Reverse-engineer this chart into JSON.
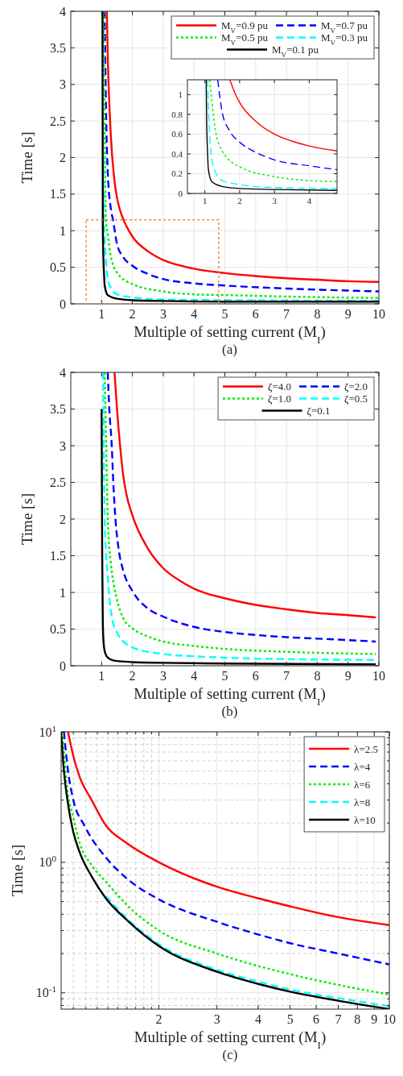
{
  "chart_data": [
    {
      "type": "line",
      "xlabel": "Multiple of setting current (M$_{I}$)",
      "ylabel": "Time [s]",
      "annotations": [
        "(a)"
      ],
      "xlim": [
        0,
        10
      ],
      "ylim": [
        0,
        4
      ],
      "xticks": [
        1,
        2,
        3,
        4,
        5,
        6,
        7,
        8,
        9,
        10
      ],
      "yticks": [
        0,
        0.5,
        1,
        1.5,
        2,
        2.5,
        3,
        3.5,
        4
      ],
      "grid": true,
      "legend": "top right",
      "series": [
        {
          "name": "M$_{V}$=0.9 pu",
          "color": "#ff0000",
          "line_style": "solid",
          "x": [
            1.17,
            1.2,
            1.3,
            1.4,
            1.5,
            1.6,
            1.74,
            1.86,
            2,
            2.5,
            3,
            3.5,
            4,
            5,
            6,
            7,
            8,
            9,
            10
          ],
          "values": [
            4,
            3.4,
            2.3,
            1.75,
            1.45,
            1.28,
            1.12,
            1.02,
            0.92,
            0.72,
            0.6,
            0.53,
            0.48,
            0.42,
            0.38,
            0.35,
            0.33,
            0.31,
            0.3
          ]
        },
        {
          "name": "M$_{V}$=0.7 pu",
          "color": "#0000ff",
          "line_style": "dashed",
          "x": [
            1.1,
            1.15,
            1.2,
            1.3,
            1.37,
            1.5,
            1.7,
            2,
            2.5,
            3,
            4,
            5,
            7,
            10
          ],
          "values": [
            4,
            2.5,
            1.8,
            1.3,
            1.15,
            0.82,
            0.64,
            0.52,
            0.41,
            0.34,
            0.28,
            0.25,
            0.21,
            0.17
          ]
        },
        {
          "name": "M$_{V}$=0.5 pu",
          "color": "#00ee00",
          "line_style": "dotted",
          "x": [
            1.07,
            1.1,
            1.14,
            1.2,
            1.3,
            1.5,
            2,
            3,
            4,
            5,
            7,
            10
          ],
          "values": [
            4,
            2.5,
            1.15,
            0.95,
            0.65,
            0.43,
            0.27,
            0.17,
            0.13,
            0.12,
            0.1,
            0.08
          ]
        },
        {
          "name": "M$_{V}$=0.3 pu",
          "color": "#00ffff",
          "line_style": "dashed",
          "x": [
            1.07,
            1.08,
            1.1,
            1.15,
            1.2,
            1.3,
            1.5,
            2,
            3,
            5,
            10
          ],
          "values": [
            2,
            1.15,
            0.9,
            0.55,
            0.35,
            0.22,
            0.13,
            0.09,
            0.06,
            0.05,
            0.04
          ]
        },
        {
          "name": "M$_{V}$=0.1 pu",
          "color": "#000000",
          "line_style": "solid",
          "x": [
            1.03,
            1.04,
            1.05,
            1.08,
            1.1,
            1.2,
            1.5,
            2,
            3,
            5,
            10
          ],
          "values": [
            4,
            1.15,
            0.8,
            0.4,
            0.25,
            0.12,
            0.07,
            0.05,
            0.04,
            0.03,
            0.03
          ]
        }
      ]
    },
    {
      "type": "line",
      "xlim": [
        0.5,
        4.8
      ],
      "ylim": [
        0,
        1.15
      ],
      "xticks": [
        1,
        2,
        3,
        4
      ],
      "yticks": [
        0,
        0.2,
        0.4,
        0.6,
        0.8,
        1
      ],
      "grid": true,
      "series": [
        {
          "color": "#ff0000",
          "line_style": "solid",
          "x": [
            1.72,
            1.86,
            2,
            2.5,
            3,
            3.5,
            4,
            4.8
          ],
          "values": [
            1.15,
            1.02,
            0.92,
            0.72,
            0.6,
            0.53,
            0.48,
            0.43
          ]
        },
        {
          "color": "#0000ff",
          "line_style": "dashed",
          "x": [
            1.37,
            1.5,
            1.7,
            2,
            2.5,
            3,
            4,
            4.8
          ],
          "values": [
            1.15,
            0.82,
            0.64,
            0.52,
            0.41,
            0.34,
            0.28,
            0.24
          ]
        },
        {
          "color": "#00ee00",
          "line_style": "dotted",
          "x": [
            1.14,
            1.2,
            1.3,
            1.5,
            2,
            3,
            4,
            4.8
          ],
          "values": [
            1.15,
            0.95,
            0.65,
            0.43,
            0.27,
            0.17,
            0.13,
            0.12
          ]
        },
        {
          "color": "#00ffff",
          "line_style": "dashed",
          "x": [
            1.08,
            1.1,
            1.15,
            1.2,
            1.3,
            1.5,
            2,
            3,
            4.8
          ],
          "values": [
            1.15,
            0.9,
            0.55,
            0.35,
            0.22,
            0.13,
            0.09,
            0.06,
            0.05
          ]
        },
        {
          "color": "#000000",
          "line_style": "solid",
          "x": [
            1.04,
            1.05,
            1.08,
            1.1,
            1.2,
            1.5,
            2,
            3,
            4.8
          ],
          "values": [
            1.15,
            0.8,
            0.4,
            0.25,
            0.12,
            0.07,
            0.05,
            0.04,
            0.03
          ]
        }
      ]
    },
    {
      "type": "line",
      "xlabel": "Multiple of setting current (M$_{I}$)",
      "ylabel": "Time [s]",
      "annotations": [
        "(b)"
      ],
      "xlim": [
        0,
        10
      ],
      "ylim": [
        0,
        4
      ],
      "xticks": [
        1,
        2,
        3,
        4,
        5,
        6,
        7,
        8,
        9,
        10
      ],
      "yticks": [
        0,
        0.5,
        1,
        1.5,
        2,
        2.5,
        3,
        3.5,
        4
      ],
      "grid": true,
      "legend": "top right",
      "series": [
        {
          "name": "ζ=4.0",
          "color": "#ff0000",
          "line_style": "solid",
          "x": [
            1.42,
            1.5,
            1.6,
            1.7,
            1.8,
            2,
            2.5,
            3,
            3.5,
            4,
            5,
            6,
            7,
            8,
            9,
            9.9
          ],
          "values": [
            4,
            3.5,
            3.0,
            2.6,
            2.35,
            2.05,
            1.6,
            1.33,
            1.17,
            1.05,
            0.92,
            0.83,
            0.77,
            0.72,
            0.69,
            0.66
          ]
        },
        {
          "name": "ζ=2.0",
          "color": "#0000ff",
          "line_style": "dashed",
          "x": [
            1.2,
            1.25,
            1.33,
            1.38,
            1.45,
            1.55,
            1.7,
            2,
            2.5,
            3,
            4,
            5,
            6,
            7,
            8,
            9,
            9.9
          ],
          "values": [
            4,
            3.5,
            3.0,
            2.5,
            2.0,
            1.6,
            1.3,
            1.02,
            0.78,
            0.67,
            0.53,
            0.46,
            0.42,
            0.39,
            0.37,
            0.35,
            0.33
          ]
        },
        {
          "name": "ζ=1.0",
          "color": "#00ee00",
          "line_style": "dotted",
          "x": [
            1.1,
            1.15,
            1.2,
            1.3,
            1.4,
            1.5,
            1.7,
            2,
            2.5,
            3,
            4,
            5,
            7,
            9.9
          ],
          "values": [
            4,
            3,
            2.0,
            1.4,
            1.1,
            0.9,
            0.65,
            0.51,
            0.4,
            0.33,
            0.27,
            0.23,
            0.19,
            0.16
          ]
        },
        {
          "name": "ζ=0.5",
          "color": "#00ffff",
          "line_style": "dashed",
          "x": [
            1.05,
            1.1,
            1.2,
            1.3,
            1.5,
            2,
            3,
            4,
            5,
            7,
            9.9
          ],
          "values": [
            4,
            2.0,
            1.2,
            0.75,
            0.45,
            0.25,
            0.16,
            0.13,
            0.11,
            0.09,
            0.08
          ]
        },
        {
          "name": "ζ=0.1",
          "color": "#000000",
          "line_style": "solid",
          "x": [
            1.0,
            1.02,
            1.04,
            1.06,
            1.1,
            1.2,
            1.4,
            2,
            3,
            5,
            9.9
          ],
          "values": [
            3.5,
            1.5,
            0.6,
            0.35,
            0.2,
            0.11,
            0.07,
            0.05,
            0.04,
            0.03,
            0.02
          ]
        }
      ]
    },
    {
      "type": "line",
      "xlabel": "Multiple of setting current (M$_{I}$)",
      "ylabel": "Time [s]",
      "annotations": [
        "(c)"
      ],
      "log": "xy",
      "xlim": [
        1.01,
        10
      ],
      "ylim": [
        0.075,
        10
      ],
      "xticks": [
        {
          "value": 1.1,
          "label": null
        },
        {
          "value": 1.2,
          "label": null
        },
        {
          "value": 1.3,
          "label": null
        },
        {
          "value": 1.4,
          "label": null
        },
        {
          "value": 1.5,
          "label": null
        },
        {
          "value": 1.6,
          "label": null
        },
        {
          "value": 1.7,
          "label": null
        },
        {
          "value": 1.8,
          "label": null
        },
        {
          "value": 1.9,
          "label": null
        },
        2,
        3,
        4,
        5,
        6,
        7,
        8,
        9,
        10
      ],
      "yticks": [
        {
          "value": 0.08,
          "label": null
        },
        {
          "value": 0.09,
          "label": null
        },
        {
          "value": 0.1,
          "label": "10$^{-1}$"
        },
        {
          "value": 0.2,
          "label": null
        },
        {
          "value": 0.3,
          "label": null
        },
        {
          "value": 0.4,
          "label": null
        },
        {
          "value": 0.5,
          "label": null
        },
        {
          "value": 0.6,
          "label": null
        },
        {
          "value": 0.7,
          "label": null
        },
        {
          "value": 0.8,
          "label": null
        },
        {
          "value": 0.9,
          "label": null
        },
        {
          "value": 1,
          "label": "10$^{0}$"
        },
        {
          "value": 2,
          "label": null
        },
        {
          "value": 3,
          "label": null
        },
        {
          "value": 4,
          "label": null
        },
        {
          "value": 5,
          "label": null
        },
        {
          "value": 6,
          "label": null
        },
        {
          "value": 7,
          "label": null
        },
        {
          "value": 8,
          "label": null
        },
        {
          "value": 9,
          "label": null
        },
        {
          "value": 10,
          "label": "10$^{1}$"
        }
      ],
      "grid": true,
      "legend": "top right",
      "series": [
        {
          "name": "λ=2.5",
          "color": "#ff0000",
          "line_style": "solid",
          "x": [
            1.06,
            1.1,
            1.15,
            1.25,
            1.38,
            1.6,
            2,
            3,
            4,
            5,
            7,
            10
          ],
          "values": [
            10,
            6.5,
            4.5,
            3.0,
            1.92,
            1.4,
            1.0,
            0.65,
            0.53,
            0.46,
            0.38,
            0.33
          ]
        },
        {
          "name": "λ=4",
          "color": "#0000ff",
          "line_style": "dashed",
          "x": [
            1.03,
            1.06,
            1.1,
            1.19,
            1.38,
            1.6,
            2,
            3,
            4,
            5,
            7,
            10
          ],
          "values": [
            10,
            5,
            3,
            1.9,
            1.09,
            0.75,
            0.52,
            0.35,
            0.28,
            0.24,
            0.2,
            0.165
          ]
        },
        {
          "name": "λ=6",
          "color": "#00ee00",
          "line_style": "dotted",
          "x": [
            1.02,
            1.05,
            1.1,
            1.15,
            1.25,
            1.38,
            1.6,
            2,
            3,
            5,
            7,
            10
          ],
          "values": [
            10,
            4,
            2.2,
            1.4,
            0.95,
            0.71,
            0.47,
            0.3,
            0.2,
            0.139,
            0.115,
            0.097
          ]
        },
        {
          "name": "λ=8",
          "color": "#00ffff",
          "line_style": "dashed",
          "x": [
            1.38,
            1.6,
            2,
            3,
            4,
            5,
            7,
            10
          ],
          "values": [
            0.55,
            0.37,
            0.235,
            0.15,
            0.122,
            0.106,
            0.091,
            0.079
          ]
        },
        {
          "name": "λ=10",
          "color": "#000000",
          "line_style": "solid",
          "x": [
            1.01,
            1.03,
            1.06,
            1.1,
            1.15,
            1.25,
            1.38,
            1.6,
            2,
            3,
            4,
            5,
            7,
            10
          ],
          "values": [
            10,
            5,
            2.8,
            1.7,
            1.19,
            0.78,
            0.53,
            0.36,
            0.228,
            0.145,
            0.117,
            0.102,
            0.087,
            0.075
          ]
        }
      ]
    }
  ]
}
